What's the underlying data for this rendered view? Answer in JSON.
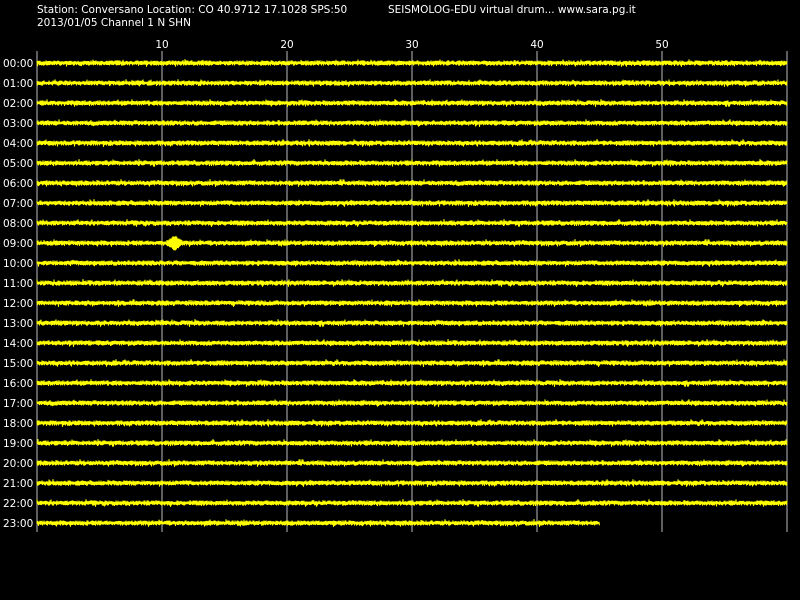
{
  "header": {
    "station_info": "Station: Conversano Location: CO 40.9712 17.1028 SPS:50",
    "app_info": "SEISMOLOG-EDU virtual drum... www.sara.pg.it",
    "date_channel": "2013/01/05  Channel 1 N SHN"
  },
  "chart_data": {
    "type": "line",
    "title": "",
    "xlabel": "",
    "ylabel": "",
    "x_unit": "minutes",
    "xlim": [
      0,
      60
    ],
    "x_ticks": [
      10,
      20,
      30,
      40,
      50
    ],
    "x_tick_labels": [
      "10",
      "20",
      "30",
      "40",
      "50"
    ],
    "grid": true,
    "rows": [
      {
        "label": "00:00",
        "end_minute": 60
      },
      {
        "label": "01:00",
        "end_minute": 60
      },
      {
        "label": "02:00",
        "end_minute": 60
      },
      {
        "label": "03:00",
        "end_minute": 60
      },
      {
        "label": "04:00",
        "end_minute": 60
      },
      {
        "label": "05:00",
        "end_minute": 60
      },
      {
        "label": "06:00",
        "end_minute": 60
      },
      {
        "label": "07:00",
        "end_minute": 60
      },
      {
        "label": "08:00",
        "end_minute": 60
      },
      {
        "label": "09:00",
        "end_minute": 60
      },
      {
        "label": "10:00",
        "end_minute": 60
      },
      {
        "label": "11:00",
        "end_minute": 60
      },
      {
        "label": "12:00",
        "end_minute": 60
      },
      {
        "label": "13:00",
        "end_minute": 60
      },
      {
        "label": "14:00",
        "end_minute": 60
      },
      {
        "label": "15:00",
        "end_minute": 60
      },
      {
        "label": "16:00",
        "end_minute": 60
      },
      {
        "label": "17:00",
        "end_minute": 60
      },
      {
        "label": "18:00",
        "end_minute": 60
      },
      {
        "label": "19:00",
        "end_minute": 60
      },
      {
        "label": "20:00",
        "end_minute": 60
      },
      {
        "label": "21:00",
        "end_minute": 60
      },
      {
        "label": "22:00",
        "end_minute": 60
      },
      {
        "label": "23:00",
        "end_minute": 45
      }
    ],
    "events": [
      {
        "row": "09:00",
        "minute": 11
      }
    ],
    "colors": {
      "trace": "#ffff00",
      "background": "#000000",
      "grid": "#bbbbbb",
      "text": "#ffffff"
    }
  }
}
